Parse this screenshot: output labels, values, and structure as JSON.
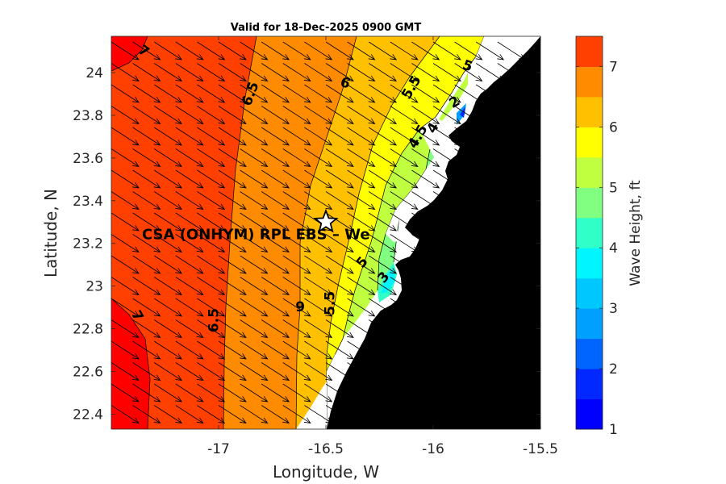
{
  "chart_data": {
    "type": "heatmap",
    "title": "Valid for 18-Dec-2025 0900 GMT",
    "xlabel": "Longitude, W",
    "ylabel": "Latitude, N",
    "xlim": [
      -17.5,
      -15.5
    ],
    "ylim": [
      22.33,
      24.17
    ],
    "x_ticks": [
      -17,
      -16.5,
      -16,
      -15.5
    ],
    "x_tick_labels": [
      "-17",
      "-16.5",
      "-16",
      "-15.5"
    ],
    "y_ticks": [
      22.4,
      22.6,
      22.8,
      23,
      23.2,
      23.4,
      23.6,
      23.8,
      24
    ],
    "y_tick_labels": [
      "22.4",
      "22.6",
      "22.8",
      "23",
      "23.2",
      "23.4",
      "23.6",
      "23.8",
      "24"
    ],
    "colorbar": {
      "label": "Wave Height, ft",
      "range": [
        1,
        7.5
      ],
      "levels": [
        1,
        1.5,
        2,
        2.5,
        3,
        3.5,
        4,
        4.5,
        5,
        5.5,
        6,
        6.5,
        7,
        7.5
      ],
      "colors": [
        "#0000ff",
        "#0028ff",
        "#0064ff",
        "#00a0ff",
        "#00c8ff",
        "#00f5ff",
        "#30ffc8",
        "#80ff80",
        "#bfff40",
        "#ffff00",
        "#ffc000",
        "#ff8c00",
        "#ff4000",
        "#ff0000"
      ],
      "tick_values": [
        1,
        2,
        3,
        4,
        5,
        6,
        7
      ],
      "tick_labels": [
        "1",
        "2",
        "3",
        "4",
        "5",
        "6",
        "7"
      ]
    },
    "contour_labels": [
      {
        "text": "7",
        "lon": -17.35,
        "lat": 24.1,
        "rot": 35
      },
      {
        "text": "6.5",
        "lon": -16.85,
        "lat": 23.9,
        "rot": -70
      },
      {
        "text": "6",
        "lon": -16.41,
        "lat": 23.95,
        "rot": 20
      },
      {
        "text": "5.5",
        "lon": -16.1,
        "lat": 23.93,
        "rot": -60
      },
      {
        "text": "5",
        "lon": -15.84,
        "lat": 24.03,
        "rot": 20
      },
      {
        "text": "4.5",
        "lon": -16.07,
        "lat": 23.7,
        "rot": -60
      },
      {
        "text": "4",
        "lon": -16.0,
        "lat": 23.74,
        "rot": -60
      },
      {
        "text": "2",
        "lon": -15.9,
        "lat": 23.86,
        "rot": -30
      },
      {
        "text": "7",
        "lon": -17.38,
        "lat": 22.86,
        "rot": 60
      },
      {
        "text": "6.5",
        "lon": -17.02,
        "lat": 22.84,
        "rot": -90
      },
      {
        "text": "6",
        "lon": -16.62,
        "lat": 22.91,
        "rot": 180
      },
      {
        "text": "5.5",
        "lon": -16.48,
        "lat": 22.92,
        "rot": -90
      },
      {
        "text": "5",
        "lon": -16.33,
        "lat": 23.11,
        "rot": -50
      },
      {
        "text": "3",
        "lon": -16.23,
        "lat": 23.04,
        "rot": -50
      }
    ],
    "station": {
      "name": "CSA (ONHYM) RPL EBS – We",
      "lon": -16.5,
      "lat": 23.3
    },
    "wind_vector_direction": "southeast",
    "land_color": "#000000"
  }
}
